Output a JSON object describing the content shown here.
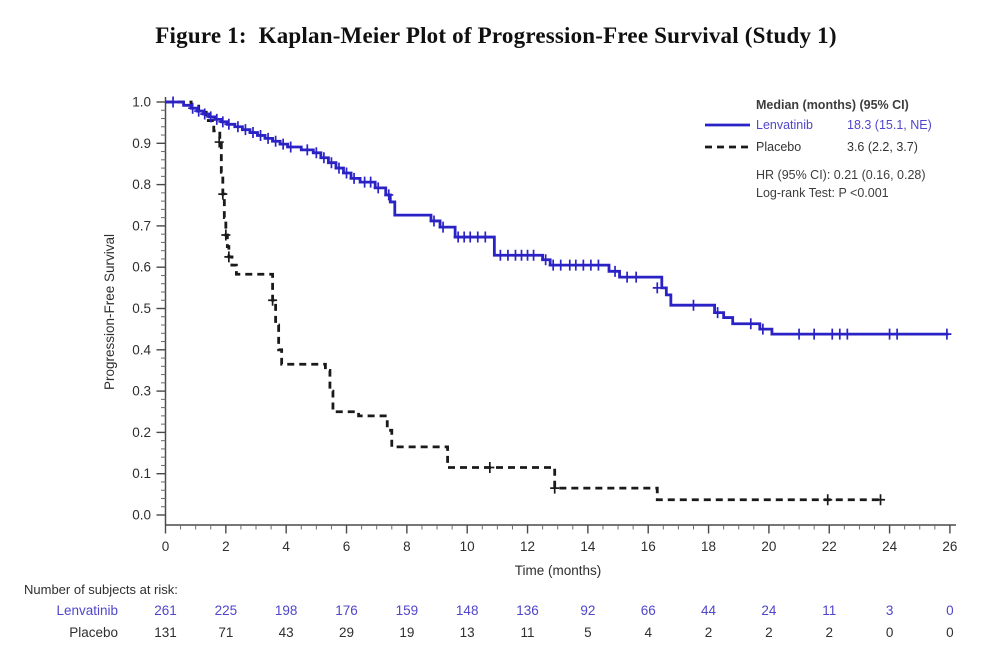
{
  "figure": {
    "title": "Figure 1:  Kaplan-Meier Plot of Progression-Free Survival (Study 1)"
  },
  "chart_data": {
    "type": "line",
    "subtype": "kaplan-meier-step",
    "title": "Figure 1:  Kaplan-Meier Plot of Progression-Free Survival (Study 1)",
    "xlabel": "Time (months)",
    "ylabel": "Progression-Free Survival",
    "xlim": [
      0,
      26
    ],
    "ylim": [
      0.0,
      1.0
    ],
    "grid": false,
    "x_ticks": [
      0,
      2,
      4,
      6,
      8,
      10,
      12,
      14,
      16,
      18,
      20,
      22,
      24,
      26
    ],
    "y_ticks": [
      0.0,
      0.1,
      0.2,
      0.3,
      0.4,
      0.5,
      0.6,
      0.7,
      0.8,
      0.9,
      1.0
    ],
    "legend": {
      "position": "top-right",
      "header": "Median (months) (95% CI)",
      "entries": [
        {
          "name": "Lenvatinib",
          "median": "18.3 (15.1, NE)",
          "style": "solid",
          "color": "#2a22c4",
          "text_color": "#4f46cb"
        },
        {
          "name": "Placebo",
          "median": "3.6 (2.2, 3.7)",
          "style": "dashed",
          "color": "#1a1a1a",
          "text_color": "#333333"
        }
      ],
      "hr_text": "HR (95% CI): 0.21 (0.16, 0.28)",
      "logrank_text": "Log-rank Test: P <0.001",
      "annotation_color": "#3d3d3d"
    },
    "series": [
      {
        "name": "Lenvatinib",
        "color": "#2a22c4",
        "style": "solid",
        "end_x": 25.95,
        "steps": [
          [
            0,
            1.0
          ],
          [
            0.6,
            0.992
          ],
          [
            0.85,
            0.985
          ],
          [
            1.05,
            0.978
          ],
          [
            1.25,
            0.971
          ],
          [
            1.45,
            0.964
          ],
          [
            1.65,
            0.958
          ],
          [
            1.85,
            0.952
          ],
          [
            2.05,
            0.946
          ],
          [
            2.3,
            0.94
          ],
          [
            2.55,
            0.933
          ],
          [
            2.8,
            0.926
          ],
          [
            3.05,
            0.919
          ],
          [
            3.3,
            0.912
          ],
          [
            3.55,
            0.905
          ],
          [
            3.8,
            0.898
          ],
          [
            4.05,
            0.891
          ],
          [
            4.5,
            0.884
          ],
          [
            4.9,
            0.877
          ],
          [
            5.15,
            0.865
          ],
          [
            5.4,
            0.853
          ],
          [
            5.65,
            0.84
          ],
          [
            5.9,
            0.828
          ],
          [
            6.15,
            0.815
          ],
          [
            6.45,
            0.806
          ],
          [
            6.95,
            0.792
          ],
          [
            7.3,
            0.775
          ],
          [
            7.45,
            0.758
          ],
          [
            7.6,
            0.726
          ],
          [
            8.8,
            0.712
          ],
          [
            9.1,
            0.697
          ],
          [
            9.6,
            0.673
          ],
          [
            10.9,
            0.629
          ],
          [
            12.5,
            0.618
          ],
          [
            12.75,
            0.605
          ],
          [
            14.7,
            0.59
          ],
          [
            15.05,
            0.576
          ],
          [
            16.45,
            0.55
          ],
          [
            16.6,
            0.533
          ],
          [
            16.75,
            0.508
          ],
          [
            18.2,
            0.49
          ],
          [
            18.5,
            0.478
          ],
          [
            18.8,
            0.463
          ],
          [
            19.7,
            0.45
          ],
          [
            20.1,
            0.438
          ]
        ],
        "censors": [
          [
            0.25,
            1.0
          ],
          [
            0.9,
            0.985
          ],
          [
            1.1,
            0.978
          ],
          [
            1.3,
            0.971
          ],
          [
            1.5,
            0.964
          ],
          [
            1.7,
            0.958
          ],
          [
            1.9,
            0.952
          ],
          [
            2.1,
            0.946
          ],
          [
            2.4,
            0.94
          ],
          [
            2.65,
            0.933
          ],
          [
            2.9,
            0.926
          ],
          [
            3.15,
            0.919
          ],
          [
            3.4,
            0.912
          ],
          [
            3.65,
            0.905
          ],
          [
            3.9,
            0.898
          ],
          [
            4.15,
            0.891
          ],
          [
            4.7,
            0.884
          ],
          [
            5.0,
            0.877
          ],
          [
            5.25,
            0.865
          ],
          [
            5.5,
            0.853
          ],
          [
            5.75,
            0.84
          ],
          [
            6.0,
            0.828
          ],
          [
            6.25,
            0.815
          ],
          [
            6.6,
            0.806
          ],
          [
            6.8,
            0.806
          ],
          [
            7.05,
            0.792
          ],
          [
            7.4,
            0.775
          ],
          [
            8.9,
            0.712
          ],
          [
            9.2,
            0.697
          ],
          [
            9.7,
            0.673
          ],
          [
            9.9,
            0.673
          ],
          [
            10.1,
            0.673
          ],
          [
            10.35,
            0.673
          ],
          [
            10.6,
            0.673
          ],
          [
            11.1,
            0.629
          ],
          [
            11.35,
            0.629
          ],
          [
            11.6,
            0.629
          ],
          [
            11.8,
            0.629
          ],
          [
            12.0,
            0.629
          ],
          [
            12.2,
            0.629
          ],
          [
            12.6,
            0.618
          ],
          [
            12.85,
            0.605
          ],
          [
            13.1,
            0.605
          ],
          [
            13.4,
            0.605
          ],
          [
            13.6,
            0.605
          ],
          [
            13.85,
            0.605
          ],
          [
            14.1,
            0.605
          ],
          [
            14.35,
            0.605
          ],
          [
            14.9,
            0.59
          ],
          [
            15.3,
            0.576
          ],
          [
            15.6,
            0.576
          ],
          [
            16.3,
            0.55
          ],
          [
            17.5,
            0.508
          ],
          [
            18.3,
            0.49
          ],
          [
            19.4,
            0.463
          ],
          [
            19.8,
            0.45
          ],
          [
            21.0,
            0.438
          ],
          [
            21.5,
            0.438
          ],
          [
            22.1,
            0.438
          ],
          [
            22.35,
            0.438
          ],
          [
            22.6,
            0.438
          ],
          [
            24.0,
            0.438
          ],
          [
            24.25,
            0.438
          ],
          [
            25.9,
            0.438
          ]
        ]
      },
      {
        "name": "Placebo",
        "color": "#1a1a1a",
        "style": "dashed",
        "end_x": 23.75,
        "steps": [
          [
            0,
            1.0
          ],
          [
            0.85,
            0.99
          ],
          [
            1.1,
            0.975
          ],
          [
            1.35,
            0.955
          ],
          [
            1.6,
            0.93
          ],
          [
            1.8,
            0.903
          ],
          [
            1.85,
            0.83
          ],
          [
            1.9,
            0.777
          ],
          [
            1.95,
            0.72
          ],
          [
            2.0,
            0.678
          ],
          [
            2.05,
            0.65
          ],
          [
            2.1,
            0.625
          ],
          [
            2.2,
            0.605
          ],
          [
            2.35,
            0.583
          ],
          [
            3.55,
            0.52
          ],
          [
            3.65,
            0.46
          ],
          [
            3.75,
            0.4
          ],
          [
            3.85,
            0.365
          ],
          [
            5.3,
            0.35
          ],
          [
            5.45,
            0.3
          ],
          [
            5.55,
            0.25
          ],
          [
            6.4,
            0.24
          ],
          [
            7.35,
            0.205
          ],
          [
            7.5,
            0.165
          ],
          [
            9.35,
            0.115
          ],
          [
            12.9,
            0.065
          ],
          [
            16.3,
            0.037
          ]
        ],
        "censors": [
          [
            1.78,
            0.903
          ],
          [
            1.9,
            0.777
          ],
          [
            2.0,
            0.678
          ],
          [
            2.1,
            0.625
          ],
          [
            3.55,
            0.52
          ],
          [
            10.75,
            0.115
          ],
          [
            12.9,
            0.065
          ],
          [
            21.95,
            0.037
          ],
          [
            23.7,
            0.037
          ]
        ]
      }
    ],
    "risk_table": {
      "title": "Number of subjects at risk:",
      "time_points": [
        0,
        2,
        4,
        6,
        8,
        10,
        12,
        14,
        16,
        18,
        20,
        22,
        24,
        26
      ],
      "rows": [
        {
          "name": "Lenvatinib",
          "color": "#4f46cb",
          "counts": [
            261,
            225,
            198,
            176,
            159,
            148,
            136,
            92,
            66,
            44,
            24,
            11,
            3,
            0
          ]
        },
        {
          "name": "Placebo",
          "color": "#2f2f2f",
          "counts": [
            131,
            71,
            43,
            29,
            19,
            13,
            11,
            5,
            4,
            2,
            2,
            2,
            0,
            0
          ]
        }
      ]
    },
    "axis_color": "#4a4a4a",
    "tick_label_color": "#2e2e2e"
  }
}
